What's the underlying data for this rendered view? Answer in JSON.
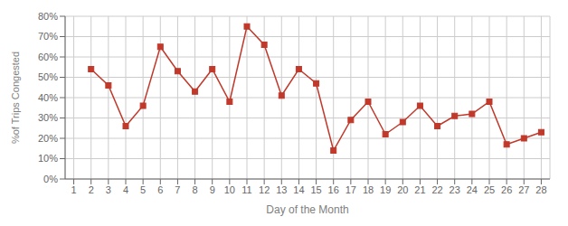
{
  "chart_data": {
    "type": "line",
    "xlabel": "Day of the Month",
    "ylabel": "%of Trips Congested",
    "x": [
      1,
      2,
      3,
      4,
      5,
      6,
      7,
      8,
      9,
      10,
      11,
      12,
      13,
      14,
      15,
      16,
      17,
      18,
      19,
      20,
      21,
      22,
      23,
      24,
      25,
      26,
      27,
      28
    ],
    "values": [
      null,
      0.54,
      0.46,
      0.26,
      0.36,
      0.65,
      0.53,
      0.43,
      0.54,
      0.38,
      0.75,
      0.66,
      0.41,
      0.54,
      0.47,
      0.14,
      0.29,
      0.38,
      0.22,
      0.28,
      0.36,
      0.26,
      0.31,
      0.32,
      0.38,
      0.17,
      0.2,
      0.23
    ],
    "color": "#C0392B",
    "marker": "square",
    "xlim": [
      0.5,
      28.5
    ],
    "xticks": [
      1,
      2,
      3,
      4,
      5,
      6,
      7,
      8,
      9,
      10,
      11,
      12,
      13,
      14,
      15,
      16,
      17,
      18,
      19,
      20,
      21,
      22,
      23,
      24,
      25,
      26,
      27,
      28
    ],
    "ylim": [
      0.0,
      0.8
    ],
    "yticks": [
      {
        "value": 0.0,
        "label": "0%"
      },
      {
        "value": 0.1,
        "label": "10%"
      },
      {
        "value": 0.2,
        "label": "20%"
      },
      {
        "value": 0.3,
        "label": "30%"
      },
      {
        "value": 0.4,
        "label": "40%"
      },
      {
        "value": 0.5,
        "label": "50%"
      },
      {
        "value": 0.6,
        "label": "60%"
      },
      {
        "value": 0.7,
        "label": "70%"
      },
      {
        "value": 0.8,
        "label": "80%"
      }
    ],
    "grid": true
  }
}
